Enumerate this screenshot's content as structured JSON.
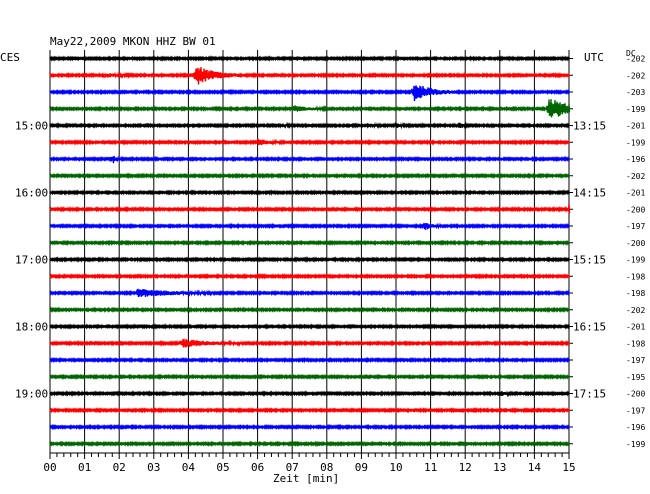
{
  "header": {
    "title": "May22,2009   MKON HHZ BW 01",
    "left_label": "CES",
    "right_label": "UTC",
    "dc_label": "DC"
  },
  "chart_data": {
    "type": "line",
    "title": "May22,2009   MKON HHZ BW 01",
    "xlabel": "Zeit [min]",
    "xlim": [
      0,
      15
    ],
    "x_ticks": [
      "00",
      "01",
      "02",
      "03",
      "04",
      "05",
      "06",
      "07",
      "08",
      "09",
      "10",
      "11",
      "12",
      "13",
      "14",
      "15"
    ],
    "grid": true,
    "trace_count": 24,
    "trace_colors": [
      "#000000",
      "#ff0000",
      "#0000ff",
      "#006400"
    ],
    "left_hour_labels": [
      {
        "trace": 4,
        "label": "15:00"
      },
      {
        "trace": 8,
        "label": "16:00"
      },
      {
        "trace": 12,
        "label": "17:00"
      },
      {
        "trace": 16,
        "label": "18:00"
      },
      {
        "trace": 20,
        "label": "19:00"
      }
    ],
    "right_hour_labels": [
      {
        "trace": 4,
        "label": "13:15"
      },
      {
        "trace": 8,
        "label": "14:15"
      },
      {
        "trace": 12,
        "label": "15:15"
      },
      {
        "trace": 16,
        "label": "16:15"
      },
      {
        "trace": 20,
        "label": "17:15"
      }
    ],
    "dc_values": [
      "-202",
      "-202",
      "-203",
      "-199",
      "-201",
      "-199",
      "-196",
      "-202",
      "-201",
      "-200",
      "-197",
      "-200",
      "-199",
      "-198",
      "-198",
      "-202",
      "-201",
      "-198",
      "-197",
      "-195",
      "-200",
      "-197",
      "-196",
      "-199"
    ],
    "events": [
      {
        "trace": 1,
        "minute": 4.2,
        "amplitude": 10,
        "duration": 0.5
      },
      {
        "trace": 1,
        "minute": 1.6,
        "amplitude": 2,
        "duration": 0.3
      },
      {
        "trace": 2,
        "minute": 10.5,
        "amplitude": 9,
        "duration": 0.5
      },
      {
        "trace": 3,
        "minute": 14.4,
        "amplitude": 11,
        "duration": 0.6
      },
      {
        "trace": 3,
        "minute": 7.0,
        "amplitude": 3,
        "duration": 0.4
      },
      {
        "trace": 4,
        "minute": 11.8,
        "amplitude": 4,
        "duration": 0.1
      },
      {
        "trace": 4,
        "minute": 9.3,
        "amplitude": 2,
        "duration": 0.1
      },
      {
        "trace": 4,
        "minute": 10.0,
        "amplitude": 2,
        "duration": 0.1
      },
      {
        "trace": 4,
        "minute": 6.7,
        "amplitude": 2,
        "duration": 0.1
      },
      {
        "trace": 5,
        "minute": 6.0,
        "amplitude": 3,
        "duration": 0.3
      },
      {
        "trace": 6,
        "minute": 1.8,
        "amplitude": 4,
        "duration": 0.1
      },
      {
        "trace": 9,
        "minute": 15.0,
        "amplitude": 5,
        "duration": 0.2
      },
      {
        "trace": 10,
        "minute": 10.8,
        "amplitude": 4,
        "duration": 0.2
      },
      {
        "trace": 14,
        "minute": 2.5,
        "amplitude": 4,
        "duration": 0.9
      },
      {
        "trace": 17,
        "minute": 3.8,
        "amplitude": 4,
        "duration": 0.7
      },
      {
        "trace": 20,
        "minute": 13.0,
        "amplitude": 3,
        "duration": 0.1
      }
    ]
  }
}
